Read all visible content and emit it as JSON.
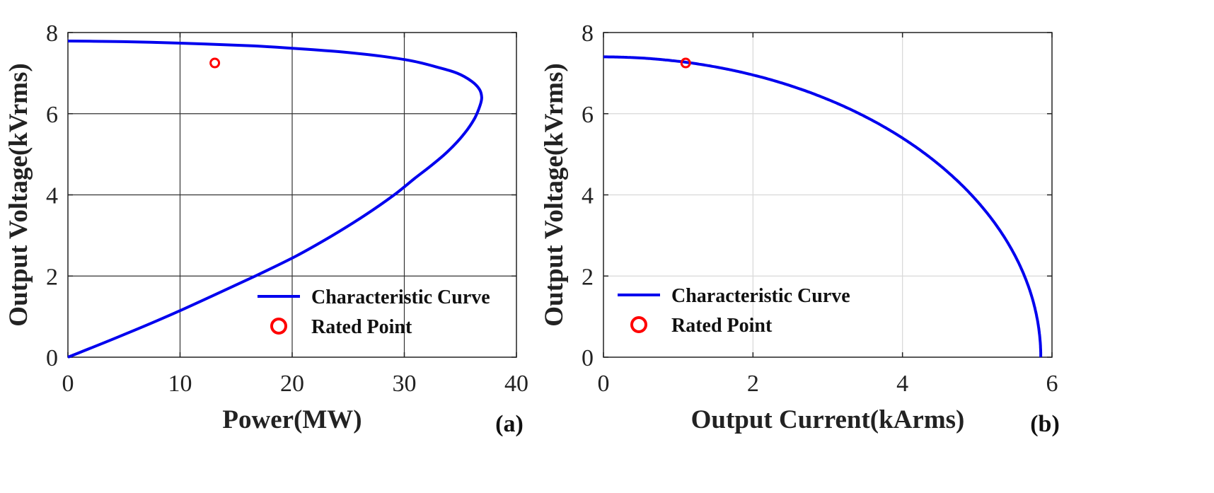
{
  "chart_data": [
    {
      "type": "line",
      "panel_label": "(a)",
      "xlabel": "Power(MW)",
      "ylabel": "Output Voltage(kVrms)",
      "xlim": [
        0,
        40
      ],
      "ylim": [
        0,
        8
      ],
      "xticks": [
        0,
        10,
        20,
        30,
        40
      ],
      "yticks": [
        0,
        2,
        4,
        6,
        8
      ],
      "grid": true,
      "grid_style": "dark",
      "legend_position": "bottom-right",
      "series": [
        {
          "name": "Characteristic Curve",
          "color": "#0000ee",
          "x": [
            0,
            4.5,
            8.8,
            12.8,
            16.7,
            20.4,
            23.6,
            26.5,
            29.1,
            30.9,
            32.3,
            33.6,
            34.7,
            35.6,
            36.3,
            36.75,
            36.9,
            36.7,
            36.0,
            34.7,
            32.9,
            30.7,
            27.9,
            24.5,
            20.7,
            16.6,
            12.1,
            7.4,
            3.7,
            0
          ],
          "y": [
            0,
            0.5,
            1.0,
            1.5,
            2.0,
            2.5,
            3.0,
            3.5,
            4.0,
            4.4,
            4.7,
            5.0,
            5.3,
            5.6,
            5.9,
            6.2,
            6.4,
            6.6,
            6.8,
            7.0,
            7.15,
            7.3,
            7.42,
            7.52,
            7.6,
            7.67,
            7.72,
            7.76,
            7.78,
            7.79
          ]
        },
        {
          "name": "Rated Point",
          "color": "#ff0000",
          "marker": "circle",
          "x": [
            13.1
          ],
          "y": [
            7.25
          ]
        }
      ]
    },
    {
      "type": "line",
      "panel_label": "(b)",
      "xlabel": "Output Current(kArms)",
      "ylabel": "Output Voltage(kVrms)",
      "xlim": [
        0,
        6
      ],
      "ylim": [
        0,
        8
      ],
      "xticks": [
        0,
        2,
        4,
        6
      ],
      "yticks": [
        0,
        2,
        4,
        6,
        8
      ],
      "grid": true,
      "grid_style": "light",
      "legend_position": "bottom-left",
      "series": [
        {
          "name": "Characteristic Curve",
          "color": "#0000ee",
          "ellipse": {
            "a": 5.85,
            "b": 7.4
          }
        },
        {
          "name": "Rated Point",
          "color": "#ff0000",
          "marker": "circle",
          "x": [
            1.1
          ],
          "y": [
            7.25
          ]
        }
      ]
    }
  ]
}
